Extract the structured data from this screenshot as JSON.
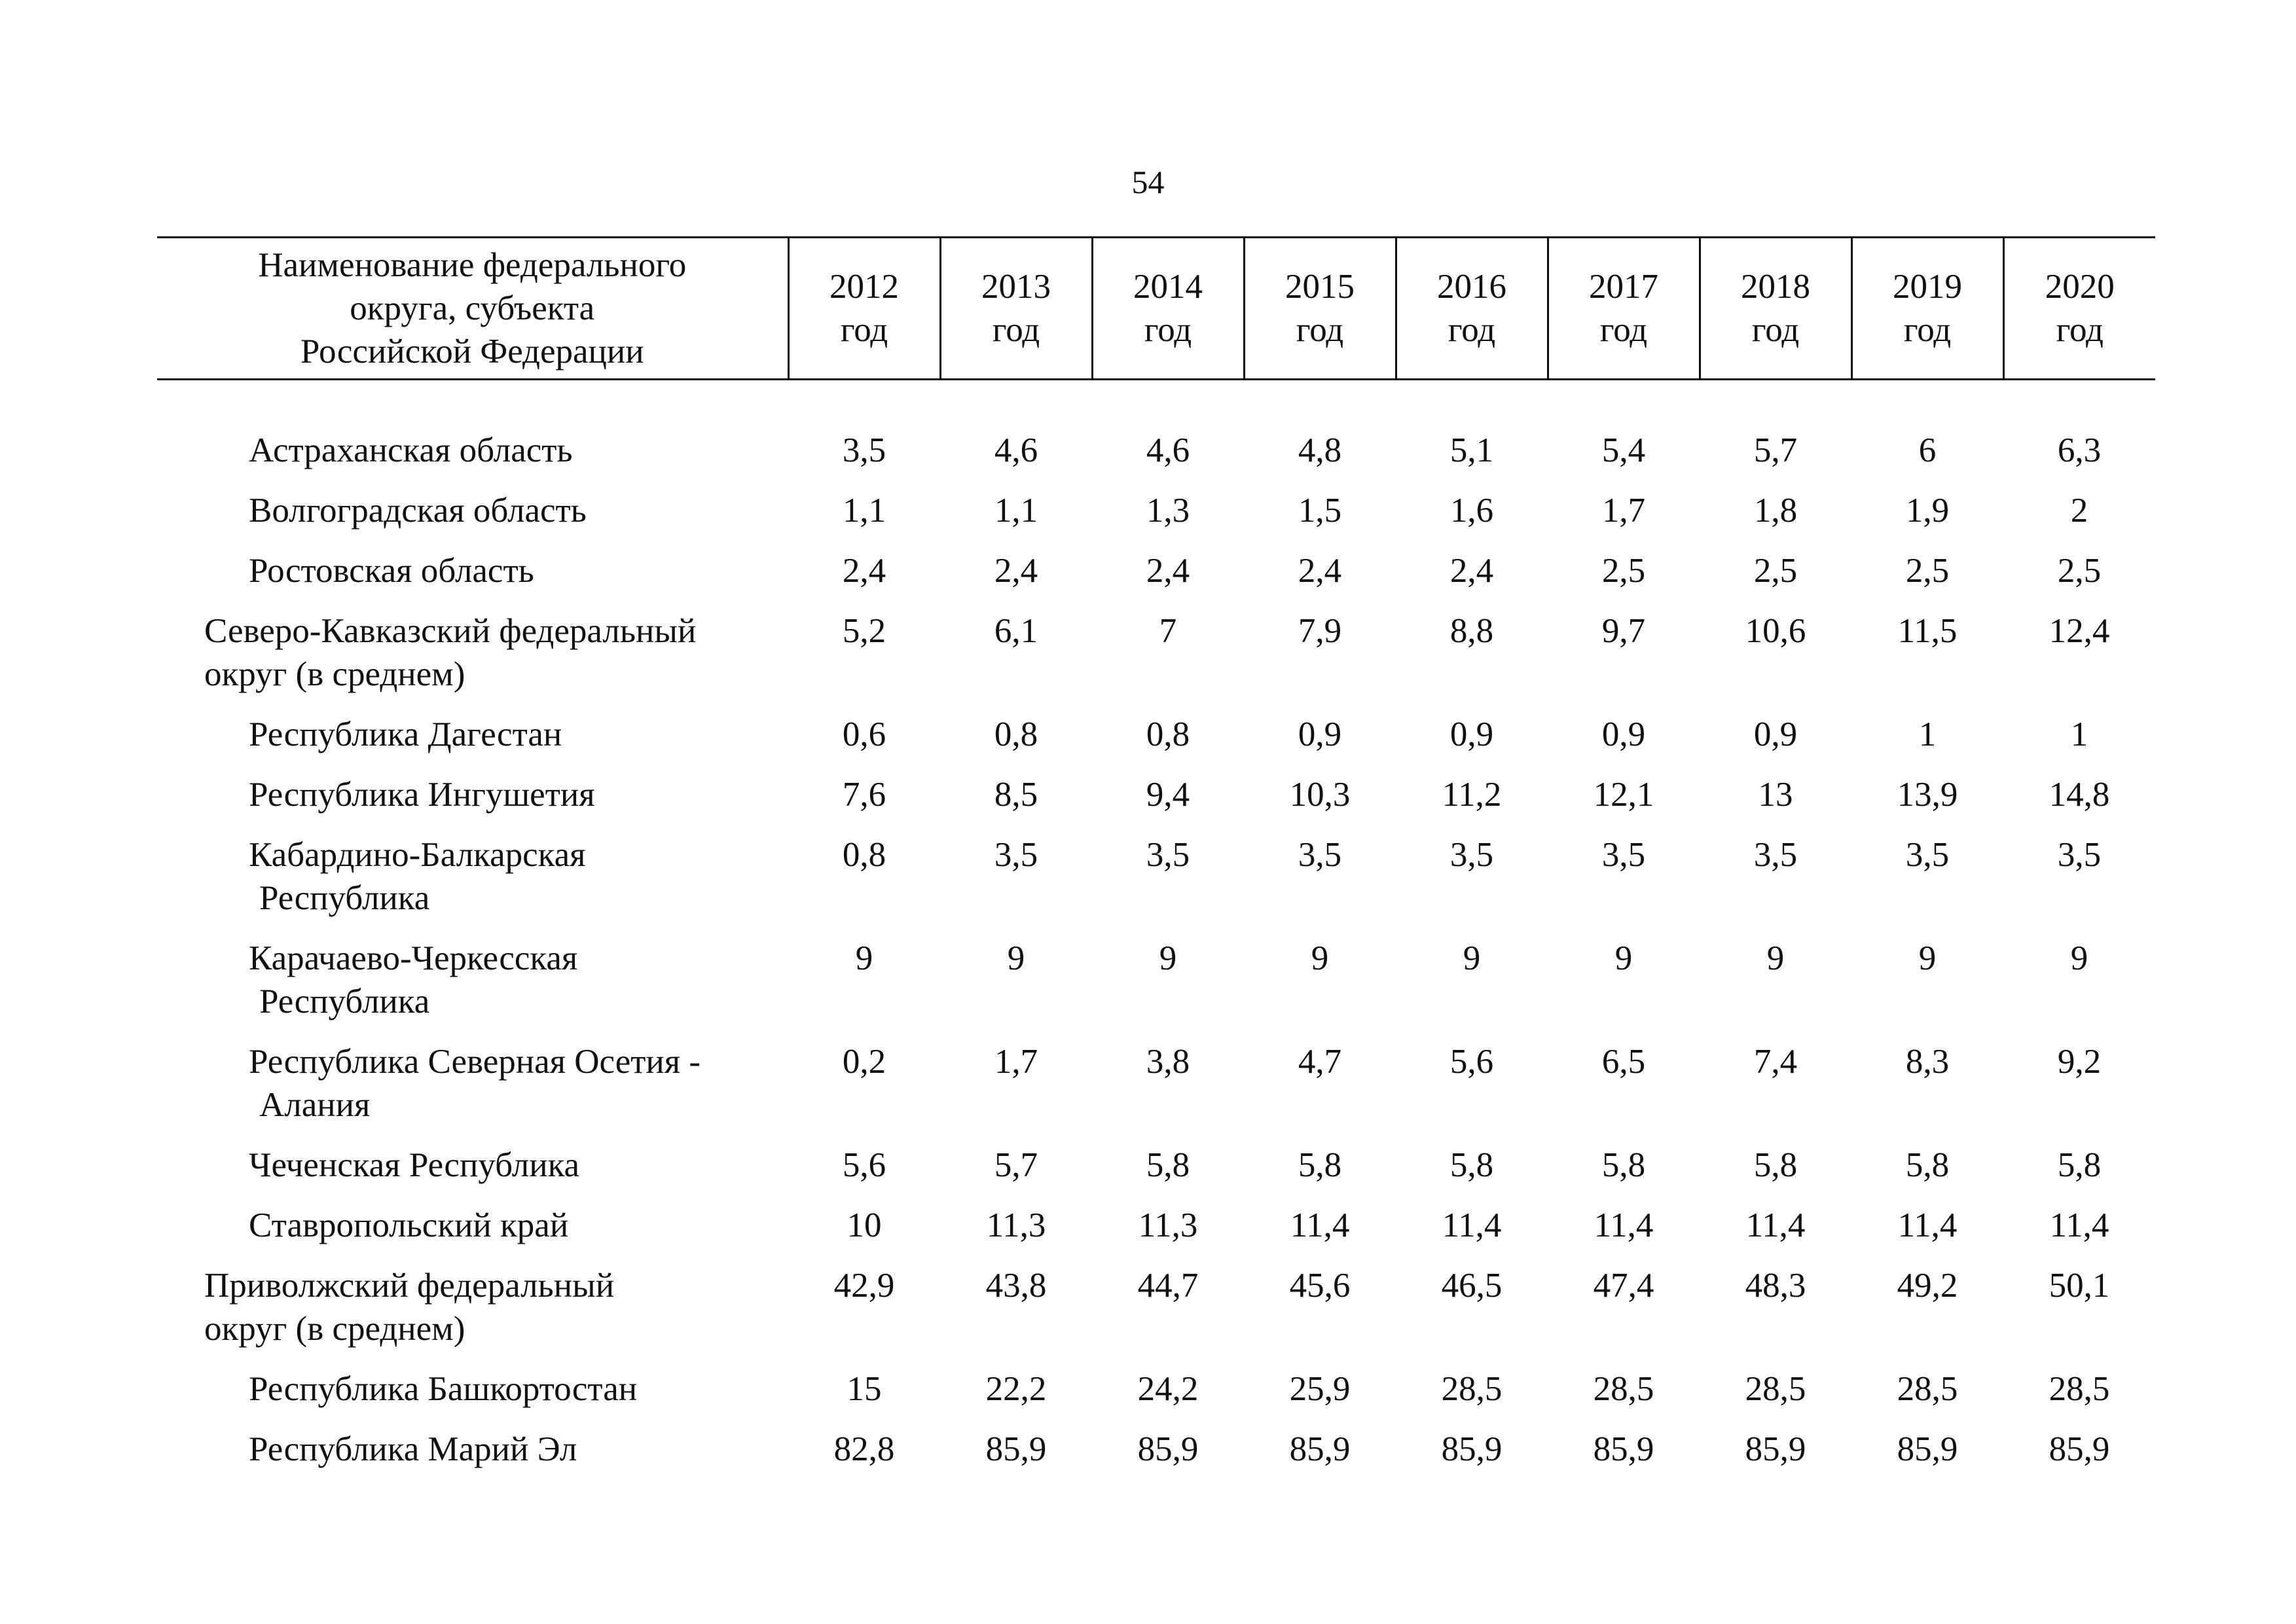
{
  "page_number": "54",
  "table": {
    "header": {
      "name_lines": [
        "Наименование федерального",
        "округа, субъекта",
        "Российской Федерации"
      ],
      "years": [
        {
          "top": "2012",
          "bottom": "год"
        },
        {
          "top": "2013",
          "bottom": "год"
        },
        {
          "top": "2014",
          "bottom": "год"
        },
        {
          "top": "2015",
          "bottom": "год"
        },
        {
          "top": "2016",
          "bottom": "год"
        },
        {
          "top": "2017",
          "bottom": "год"
        },
        {
          "top": "2018",
          "bottom": "год"
        },
        {
          "top": "2019",
          "bottom": "год"
        },
        {
          "top": "2020",
          "bottom": "год"
        }
      ]
    },
    "rows": [
      {
        "name": "Астраханская область",
        "values": [
          "3,5",
          "4,6",
          "4,6",
          "4,8",
          "5,1",
          "5,4",
          "5,7",
          "6",
          "6,3"
        ]
      },
      {
        "name": "Волгоградская область",
        "values": [
          "1,1",
          "1,1",
          "1,3",
          "1,5",
          "1,6",
          "1,7",
          "1,8",
          "1,9",
          "2"
        ]
      },
      {
        "name": "Ростовская область",
        "values": [
          "2,4",
          "2,4",
          "2,4",
          "2,4",
          "2,4",
          "2,5",
          "2,5",
          "2,5",
          "2,5"
        ]
      },
      {
        "name": "Северо-Кавказский федеральный",
        "name2": "округ (в среднем)",
        "values": [
          "5,2",
          "6,1",
          "7",
          "7,9",
          "8,8",
          "9,7",
          "10,6",
          "11,5",
          "12,4"
        ]
      },
      {
        "name": "Республика Дагестан",
        "values": [
          "0,6",
          "0,8",
          "0,8",
          "0,9",
          "0,9",
          "0,9",
          "0,9",
          "1",
          "1"
        ]
      },
      {
        "name": "Республика Ингушетия",
        "values": [
          "7,6",
          "8,5",
          "9,4",
          "10,3",
          "11,2",
          "12,1",
          "13",
          "13,9",
          "14,8"
        ]
      },
      {
        "name": "Кабардино-Балкарская",
        "name2": "Республика",
        "values": [
          "0,8",
          "3,5",
          "3,5",
          "3,5",
          "3,5",
          "3,5",
          "3,5",
          "3,5",
          "3,5"
        ]
      },
      {
        "name": "Карачаево-Черкесская",
        "name2": "Республика",
        "values": [
          "9",
          "9",
          "9",
          "9",
          "9",
          "9",
          "9",
          "9",
          "9"
        ]
      },
      {
        "name": "Республика Северная Осетия -",
        "name2": "Алания",
        "values": [
          "0,2",
          "1,7",
          "3,8",
          "4,7",
          "5,6",
          "6,5",
          "7,4",
          "8,3",
          "9,2"
        ]
      },
      {
        "name": "Чеченская Республика",
        "values": [
          "5,6",
          "5,7",
          "5,8",
          "5,8",
          "5,8",
          "5,8",
          "5,8",
          "5,8",
          "5,8"
        ]
      },
      {
        "name": "Ставропольский край",
        "values": [
          "10",
          "11,3",
          "11,3",
          "11,4",
          "11,4",
          "11,4",
          "11,4",
          "11,4",
          "11,4"
        ]
      },
      {
        "name": "Приволжский федеральный",
        "name2": "округ (в среднем)",
        "values": [
          "42,9",
          "43,8",
          "44,7",
          "45,6",
          "46,5",
          "47,4",
          "48,3",
          "49,2",
          "50,1"
        ]
      },
      {
        "name": "Республика Башкортостан",
        "values": [
          "15",
          "22,2",
          "24,2",
          "25,9",
          "28,5",
          "28,5",
          "28,5",
          "28,5",
          "28,5"
        ]
      },
      {
        "name": "Республика Марий Эл",
        "values": [
          "82,8",
          "85,9",
          "85,9",
          "85,9",
          "85,9",
          "85,9",
          "85,9",
          "85,9",
          "85,9"
        ]
      }
    ]
  }
}
